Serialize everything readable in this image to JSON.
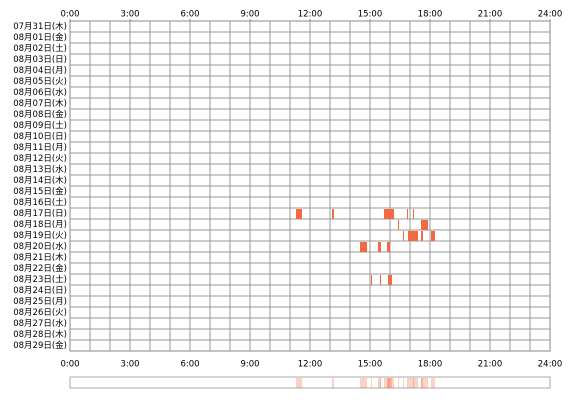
{
  "chart_data": {
    "type": "timeline",
    "categories": [
      "07月31日(木)",
      "08月01日(金)",
      "08月02日(土)",
      "08月03日(日)",
      "08月04日(月)",
      "08月05日(火)",
      "08月06日(水)",
      "08月07日(木)",
      "08月08日(金)",
      "08月09日(土)",
      "08月10日(日)",
      "08月11日(月)",
      "08月12日(火)",
      "08月13日(水)",
      "08月14日(木)",
      "08月15日(金)",
      "08月16日(土)",
      "08月17日(日)",
      "08月18日(月)",
      "08月19日(火)",
      "08月20日(水)",
      "08月21日(木)",
      "08月22日(金)",
      "08月23日(土)",
      "08月24日(日)",
      "08月25日(月)",
      "08月26日(火)",
      "08月27日(水)",
      "08月28日(木)",
      "08月29日(金)"
    ],
    "values": [
      [],
      [],
      [],
      [],
      [],
      [],
      [],
      [],
      [],
      [],
      [],
      [],
      [],
      [],
      [],
      [],
      [],
      [
        [
          11.3,
          11.6
        ],
        [
          13.1,
          13.2
        ],
        [
          15.7,
          16.2
        ],
        [
          16.85,
          16.9
        ],
        [
          17.15,
          17.2
        ]
      ],
      [
        [
          16.4,
          16.45
        ],
        [
          17.55,
          17.9
        ]
      ],
      [
        [
          16.65,
          16.7
        ],
        [
          16.9,
          17.4
        ],
        [
          17.55,
          17.65
        ],
        [
          18.05,
          18.25
        ]
      ],
      [
        [
          14.5,
          14.85
        ],
        [
          15.4,
          15.55
        ],
        [
          15.85,
          16.0
        ]
      ],
      [],
      [],
      [
        [
          15.05,
          15.1
        ],
        [
          15.5,
          15.55
        ],
        [
          15.9,
          16.1
        ]
      ],
      [],
      [],
      [],
      [],
      [],
      []
    ],
    "color": "#f26a43",
    "xlim": [
      0,
      24
    ],
    "xticks": [
      {
        "value": 0,
        "label": "0:00"
      },
      {
        "value": 3,
        "label": "3:00"
      },
      {
        "value": 6,
        "label": "6:00"
      },
      {
        "value": 9,
        "label": "9:00"
      },
      {
        "value": 12,
        "label": "12:00"
      },
      {
        "value": 15,
        "label": "15:00"
      },
      {
        "value": 18,
        "label": "18:00"
      },
      {
        "value": 21,
        "label": "21:00"
      },
      {
        "value": 24,
        "label": "24:00"
      }
    ],
    "grid": true
  }
}
